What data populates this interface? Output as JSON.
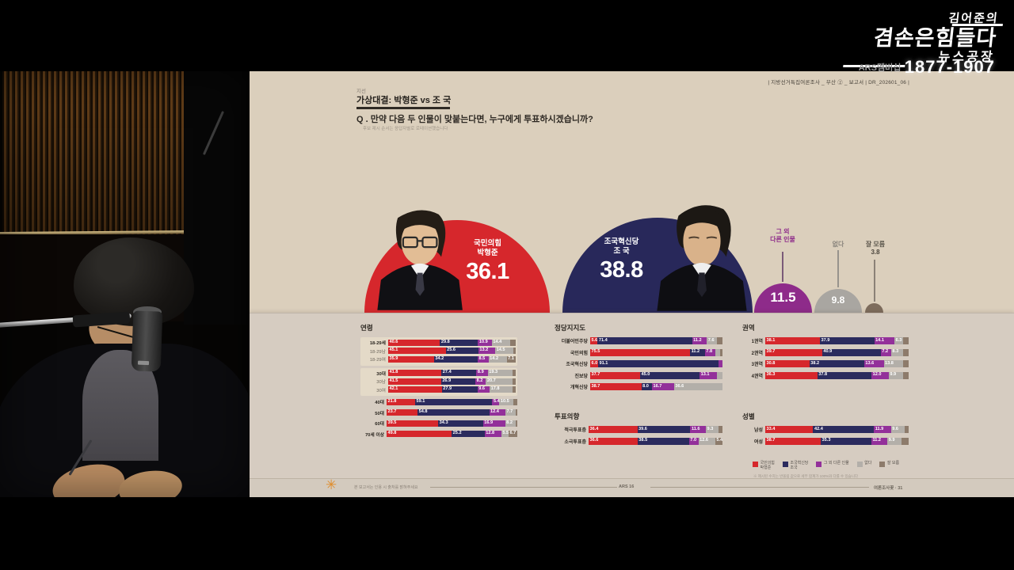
{
  "broadcast": {
    "logo_line1": "김어준의",
    "logo_line2": "겸손은힘들다",
    "logo_line3": "뉴스공장",
    "membership_label": "ARS멤버십",
    "membership_phone": "1877-1907"
  },
  "slide": {
    "meta": "|   지방선거특집여론조사 _ 부산 ② _ 보고서   |   DR_202601_06   |",
    "kicker": "지선",
    "title": "가상대결: 박형준 vs 조 국",
    "question": "Q . 만약 다음 두 인물이 맞붙는다면, 누구에게 투표하시겠습니까?",
    "question_note": "후보 제시 순서는 응답자별로 로테이션했습니다",
    "legend_note": "※ 제시된 수치는 반올림 값으로 세부 합계가 100%와 다를 수 있습니다",
    "footer_note": "본 보고서는 인용 시 출처를 밝혀주세요",
    "footer_center": "ARS 16",
    "footer_right": "여론조사꽃 · 31"
  },
  "chart_data": {
    "type": "stacked_bar",
    "colors": {
      "red": "#d6272c",
      "navy": "#2b2b5e",
      "purple": "#93309a",
      "gray": "#b3afa9",
      "brown": "#8d7b6b"
    },
    "headline": {
      "candidate1": {
        "party": "국민의힘",
        "name": "박형준",
        "value": "36.1"
      },
      "candidate2": {
        "party": "조국혁신당",
        "name": "조 국",
        "value": "38.8"
      },
      "other": {
        "label": "그 외\n다른 인물",
        "value": "11.5"
      },
      "none": {
        "label": "없다",
        "value": "9.8"
      },
      "unsure": {
        "label": "잘 모름",
        "value": "3.8"
      }
    },
    "legend": [
      {
        "color": "red",
        "label": "국민의힘\n박형준"
      },
      {
        "color": "navy",
        "label": "조국혁신당\n조국"
      },
      {
        "color": "purple",
        "label": "그 외 다른 인물"
      },
      {
        "color": "gray",
        "label": "없다"
      },
      {
        "color": "brown",
        "label": "잘 모름"
      }
    ],
    "charts": [
      {
        "id": "age",
        "title": "연령",
        "groups": [
          {
            "box": true,
            "rows": [
              {
                "label": "18-29세",
                "main": true,
                "segs": [
                  [
                    "red",
                    40.6,
                    1
                  ],
                  [
                    "navy",
                    29.8,
                    1
                  ],
                  [
                    "purple",
                    10.9,
                    1
                  ],
                  [
                    "gray",
                    14.4,
                    1
                  ],
                  [
                    "brown",
                    4.3,
                    0
                  ]
                ]
              },
              {
                "label": "18-29남",
                "segs": [
                  [
                    "red",
                    45.1,
                    1
                  ],
                  [
                    "navy",
                    25.6,
                    1
                  ],
                  [
                    "purple",
                    13.2,
                    1
                  ],
                  [
                    "gray",
                    14.5,
                    1
                  ],
                  [
                    "brown",
                    1.6,
                    0
                  ]
                ]
              },
              {
                "label": "18-29여",
                "segs": [
                  [
                    "red",
                    35.9,
                    1
                  ],
                  [
                    "navy",
                    34.2,
                    1
                  ],
                  [
                    "purple",
                    8.5,
                    1
                  ],
                  [
                    "gray",
                    14.2,
                    1
                  ],
                  [
                    "brown",
                    7.1,
                    1
                  ]
                ]
              }
            ]
          },
          {
            "box": true,
            "rows": [
              {
                "label": "30대",
                "main": true,
                "segs": [
                  [
                    "red",
                    41.8,
                    1
                  ],
                  [
                    "navy",
                    27.4,
                    1
                  ],
                  [
                    "purple",
                    8.9,
                    1
                  ],
                  [
                    "gray",
                    19.3,
                    1
                  ],
                  [
                    "brown",
                    2.6,
                    0
                  ]
                ]
              },
              {
                "label": "30남",
                "segs": [
                  [
                    "red",
                    41.5,
                    1
                  ],
                  [
                    "navy",
                    26.9,
                    1
                  ],
                  [
                    "purple",
                    8.2,
                    1
                  ],
                  [
                    "gray",
                    20.7,
                    1
                  ],
                  [
                    "brown",
                    2.7,
                    0
                  ]
                ]
              },
              {
                "label": "30여",
                "segs": [
                  [
                    "red",
                    42.1,
                    1
                  ],
                  [
                    "navy",
                    27.9,
                    1
                  ],
                  [
                    "purple",
                    9.6,
                    1
                  ],
                  [
                    "gray",
                    17.8,
                    1
                  ],
                  [
                    "brown",
                    2.6,
                    0
                  ]
                ]
              }
            ]
          },
          {
            "rows": [
              {
                "label": "40대",
                "main": true,
                "segs": [
                  [
                    "red",
                    21.8,
                    1
                  ],
                  [
                    "navy",
                    59.1,
                    1
                  ],
                  [
                    "purple",
                    5.4,
                    1
                  ],
                  [
                    "gray",
                    10.5,
                    1
                  ],
                  [
                    "brown",
                    3.2,
                    0
                  ]
                ]
              }
            ]
          },
          {
            "rows": [
              {
                "label": "50대",
                "main": true,
                "segs": [
                  [
                    "red",
                    23.7,
                    1
                  ],
                  [
                    "navy",
                    54.8,
                    1
                  ],
                  [
                    "purple",
                    12.4,
                    1
                  ],
                  [
                    "gray",
                    7.7,
                    1
                  ],
                  [
                    "brown",
                    1.4,
                    0
                  ]
                ]
              }
            ]
          },
          {
            "rows": [
              {
                "label": "60대",
                "main": true,
                "segs": [
                  [
                    "red",
                    39.5,
                    1
                  ],
                  [
                    "navy",
                    34.3,
                    1
                  ],
                  [
                    "purple",
                    16.9,
                    1
                  ],
                  [
                    "gray",
                    8.2,
                    1
                  ],
                  [
                    "brown",
                    1.1,
                    0
                  ]
                ]
              }
            ]
          },
          {
            "rows": [
              {
                "label": "70세 이상",
                "main": true,
                "segs": [
                  [
                    "red",
                    49.8,
                    1
                  ],
                  [
                    "navy",
                    25.2,
                    1
                  ],
                  [
                    "purple",
                    12.8,
                    1
                  ],
                  [
                    "gray",
                    5.5,
                    1
                  ],
                  [
                    "brown",
                    6.7,
                    1
                  ]
                ]
              }
            ]
          }
        ]
      },
      {
        "id": "party",
        "title": "정당지지도",
        "groups": [
          {
            "rows": [
              {
                "label": "더불어민주당",
                "main": true,
                "segs": [
                  [
                    "red",
                    5.6,
                    1
                  ],
                  [
                    "navy",
                    71.4,
                    1
                  ],
                  [
                    "purple",
                    11.2,
                    1
                  ],
                  [
                    "gray",
                    7.6,
                    1
                  ],
                  [
                    "brown",
                    4.2,
                    0
                  ]
                ]
              },
              {
                "label": "국민의힘",
                "main": true,
                "segs": [
                  [
                    "red",
                    75.5,
                    1
                  ],
                  [
                    "navy",
                    11.2,
                    1
                  ],
                  [
                    "purple",
                    7.8,
                    1
                  ],
                  [
                    "gray",
                    3.5,
                    0
                  ],
                  [
                    "brown",
                    2.0,
                    0
                  ]
                ]
              },
              {
                "label": "조국혁신당",
                "main": true,
                "segs": [
                  [
                    "red",
                    6.0,
                    1
                  ],
                  [
                    "navy",
                    91.1,
                    1
                  ],
                  [
                    "purple",
                    2.9,
                    0
                  ]
                ]
              },
              {
                "label": "진보당",
                "main": true,
                "segs": [
                  [
                    "red",
                    37.7,
                    1
                  ],
                  [
                    "navy",
                    45.0,
                    1
                  ],
                  [
                    "purple",
                    13.1,
                    1
                  ],
                  [
                    "gray",
                    4.2,
                    0
                  ]
                ]
              },
              {
                "label": "개혁신당",
                "main": true,
                "segs": [
                  [
                    "red",
                    38.7,
                    1
                  ],
                  [
                    "navy",
                    8.0,
                    1
                  ],
                  [
                    "purple",
                    16.7,
                    1
                  ],
                  [
                    "gray",
                    36.6,
                    1
                  ]
                ]
              }
            ]
          }
        ]
      },
      {
        "id": "region",
        "title": "권역",
        "groups": [
          {
            "rows": [
              {
                "label": "1권역",
                "main": true,
                "segs": [
                  [
                    "red",
                    38.1,
                    1
                  ],
                  [
                    "navy",
                    37.9,
                    1
                  ],
                  [
                    "purple",
                    14.1,
                    1
                  ],
                  [
                    "gray",
                    6.3,
                    1
                  ],
                  [
                    "brown",
                    3.6,
                    0
                  ]
                ]
              },
              {
                "label": "2권역",
                "main": true,
                "segs": [
                  [
                    "red",
                    39.7,
                    1
                  ],
                  [
                    "navy",
                    40.9,
                    1
                  ],
                  [
                    "purple",
                    7.2,
                    1
                  ],
                  [
                    "gray",
                    8.3,
                    1
                  ],
                  [
                    "brown",
                    3.9,
                    0
                  ]
                ]
              },
              {
                "label": "3권역",
                "main": true,
                "segs": [
                  [
                    "red",
                    30.8,
                    1
                  ],
                  [
                    "navy",
                    38.2,
                    1
                  ],
                  [
                    "purple",
                    13.6,
                    1
                  ],
                  [
                    "gray",
                    13.8,
                    1
                  ],
                  [
                    "brown",
                    3.6,
                    0
                  ]
                ]
              },
              {
                "label": "4권역",
                "main": true,
                "segs": [
                  [
                    "red",
                    36.3,
                    1
                  ],
                  [
                    "navy",
                    37.8,
                    1
                  ],
                  [
                    "purple",
                    12.0,
                    1
                  ],
                  [
                    "gray",
                    9.9,
                    1
                  ],
                  [
                    "brown",
                    4.0,
                    0
                  ]
                ]
              }
            ]
          }
        ]
      },
      {
        "id": "intent",
        "title": "투표의향",
        "groups": [
          {
            "rows": [
              {
                "label": "적극투표층",
                "main": true,
                "segs": [
                  [
                    "red",
                    36.4,
                    1
                  ],
                  [
                    "navy",
                    39.6,
                    1
                  ],
                  [
                    "purple",
                    11.6,
                    1
                  ],
                  [
                    "gray",
                    9.3,
                    1
                  ],
                  [
                    "brown",
                    3.1,
                    0
                  ]
                ]
              },
              {
                "label": "소극투표층",
                "main": true,
                "segs": [
                  [
                    "red",
                    36.6,
                    1
                  ],
                  [
                    "navy",
                    38.5,
                    1
                  ],
                  [
                    "purple",
                    7.0,
                    1
                  ],
                  [
                    "gray",
                    12.6,
                    1
                  ],
                  [
                    "brown",
                    5.4,
                    1
                  ]
                ]
              }
            ]
          }
        ]
      },
      {
        "id": "gender",
        "title": "성별",
        "groups": [
          {
            "rows": [
              {
                "label": "남성",
                "main": true,
                "segs": [
                  [
                    "red",
                    33.4,
                    1
                  ],
                  [
                    "navy",
                    42.4,
                    1
                  ],
                  [
                    "purple",
                    11.9,
                    1
                  ],
                  [
                    "gray",
                    9.6,
                    1
                  ],
                  [
                    "brown",
                    2.7,
                    0
                  ]
                ]
              },
              {
                "label": "여성",
                "main": true,
                "segs": [
                  [
                    "red",
                    38.7,
                    1
                  ],
                  [
                    "navy",
                    35.3,
                    1
                  ],
                  [
                    "purple",
                    11.2,
                    1
                  ],
                  [
                    "gray",
                    9.9,
                    1
                  ],
                  [
                    "brown",
                    4.9,
                    0
                  ]
                ]
              }
            ]
          }
        ]
      }
    ]
  }
}
